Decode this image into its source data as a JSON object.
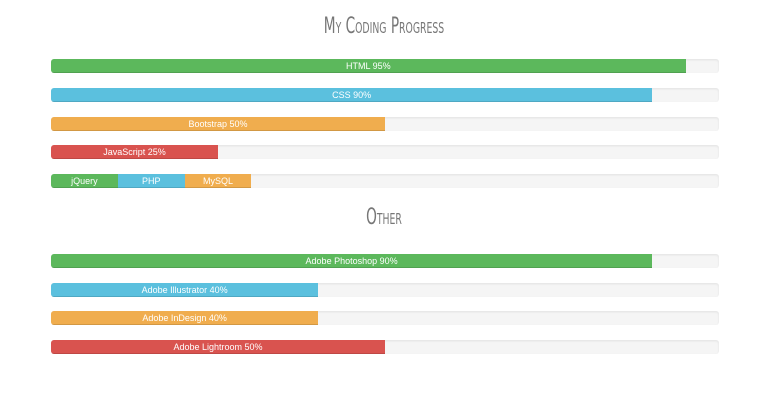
{
  "sections": {
    "coding": {
      "title": "My Coding Progress",
      "bars": [
        {
          "label": "HTML 95%",
          "skill": "HTML",
          "percent": 95,
          "color": "#5cb85c"
        },
        {
          "label": "CSS 90%",
          "skill": "CSS",
          "percent": 90,
          "color": "#5bc0de"
        },
        {
          "label": "Bootstrap 50%",
          "skill": "Bootstrap",
          "percent": 50,
          "color": "#f0ad4e"
        },
        {
          "label": "JavaScript 25%",
          "skill": "JavaScript",
          "percent": 25,
          "color": "#d9534f"
        }
      ],
      "stacked": [
        {
          "label": "jQuery",
          "percent": 10,
          "color": "#5cb85c"
        },
        {
          "label": "PHP",
          "percent": 10,
          "color": "#5bc0de"
        },
        {
          "label": "MySQL",
          "percent": 10,
          "color": "#f0ad4e"
        }
      ]
    },
    "other": {
      "title": "Other",
      "bars": [
        {
          "label": "Adobe Photoshop 90%",
          "skill": "Adobe Photoshop",
          "percent": 90,
          "color": "#5cb85c"
        },
        {
          "label": "Adobe Illustrator 40%",
          "skill": "Adobe Illustrator",
          "percent": 40,
          "color": "#5bc0de"
        },
        {
          "label": "Adobe InDesign 40%",
          "skill": "Adobe InDesign",
          "percent": 40,
          "color": "#f0ad4e"
        },
        {
          "label": "Adobe Lightroom 50%",
          "skill": "Adobe Lightroom",
          "percent": 50,
          "color": "#d9534f"
        }
      ]
    }
  },
  "chart_data": [
    {
      "type": "bar",
      "orientation": "horizontal",
      "title": "My Coding Progress",
      "categories": [
        "HTML",
        "CSS",
        "Bootstrap",
        "JavaScript"
      ],
      "values": [
        95,
        90,
        50,
        25
      ],
      "stacked_row": {
        "categories": [
          "jQuery",
          "PHP",
          "MySQL"
        ],
        "values": [
          10,
          10,
          10
        ]
      },
      "xlim": [
        0,
        100
      ],
      "unit": "%",
      "xlabel": "",
      "ylabel": "",
      "grid": false,
      "legend": "none"
    },
    {
      "type": "bar",
      "orientation": "horizontal",
      "title": "Other",
      "categories": [
        "Adobe Photoshop",
        "Adobe Illustrator",
        "Adobe InDesign",
        "Adobe Lightroom"
      ],
      "values": [
        90,
        40,
        40,
        50
      ],
      "xlim": [
        0,
        100
      ],
      "unit": "%",
      "xlabel": "",
      "ylabel": "",
      "grid": false,
      "legend": "none"
    }
  ]
}
